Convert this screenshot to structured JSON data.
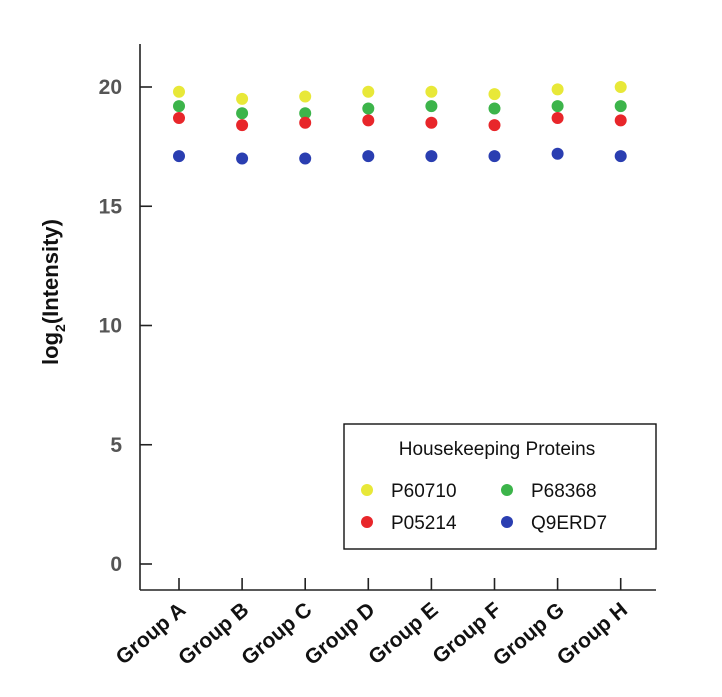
{
  "chart_data": {
    "type": "scatter",
    "title": "",
    "xlabel": "",
    "ylabel": {
      "prefix": "log",
      "subscript": "2",
      "suffix": "(Intensity)"
    },
    "categories": [
      "Group A",
      "Group B",
      "Group C",
      "Group D",
      "Group E",
      "Group F",
      "Group G",
      "Group H"
    ],
    "ylim": [
      0,
      22
    ],
    "yticks": [
      0,
      5,
      10,
      15,
      20
    ],
    "ytick_labels": [
      "0",
      "5",
      "10",
      "15",
      "20"
    ],
    "grid": false,
    "legend": {
      "title": "Housekeeping Proteins",
      "placement": "bottom-right"
    },
    "series": [
      {
        "name": "P60710",
        "color": "#e8e838",
        "values": [
          19.8,
          19.5,
          19.6,
          19.8,
          19.8,
          19.7,
          19.9,
          20.0
        ]
      },
      {
        "name": "P68368",
        "color": "#3cb44a",
        "values": [
          19.2,
          18.9,
          18.9,
          19.1,
          19.2,
          19.1,
          19.2,
          19.2
        ]
      },
      {
        "name": "P05214",
        "color": "#e8262a",
        "values": [
          18.7,
          18.4,
          18.5,
          18.6,
          18.5,
          18.4,
          18.7,
          18.6
        ]
      },
      {
        "name": "Q9ERD7",
        "color": "#2a3eb1",
        "values": [
          17.1,
          17.0,
          17.0,
          17.1,
          17.1,
          17.1,
          17.2,
          17.1
        ]
      }
    ]
  }
}
